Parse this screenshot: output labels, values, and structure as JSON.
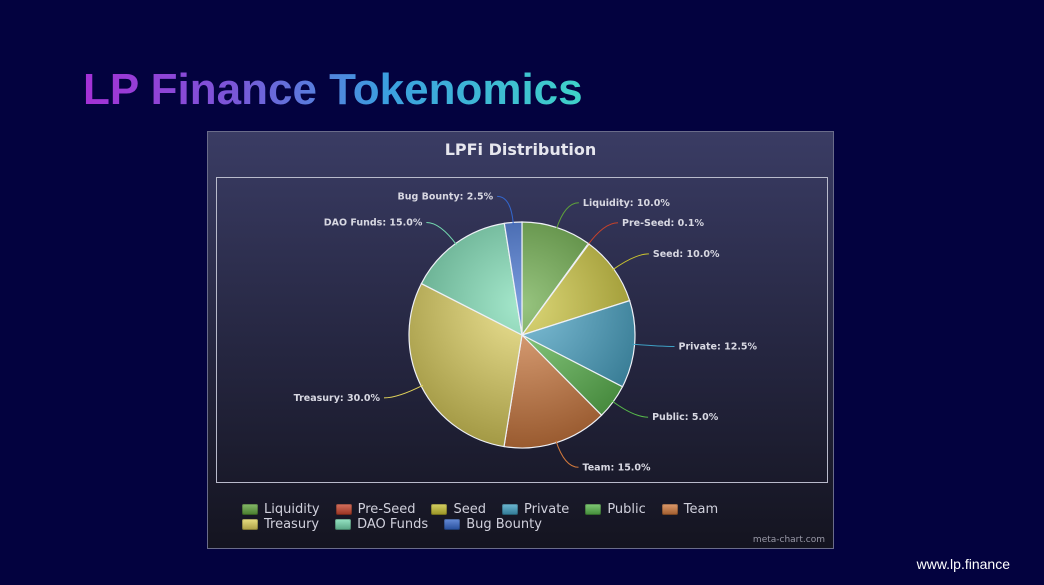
{
  "slide": {
    "title": "LP Finance Tokenomics",
    "url": "www.lp.finance",
    "background": "#03023f"
  },
  "chart_data": {
    "type": "pie",
    "title": "LPFi Distribution",
    "credit": "meta-chart.com",
    "legend_position": "bottom",
    "slices": [
      {
        "name": "Liquidity",
        "value": 10.0,
        "label": "Liquidity: 10.0%",
        "color": "#5fa43a"
      },
      {
        "name": "Pre-Seed",
        "value": 0.1,
        "label": "Pre-Seed: 0.1%",
        "color": "#c8422a"
      },
      {
        "name": "Seed",
        "value": 10.0,
        "label": "Seed: 10.0%",
        "color": "#c9c230"
      },
      {
        "name": "Private",
        "value": 12.5,
        "label": "Private: 12.5%",
        "color": "#3ea0c4"
      },
      {
        "name": "Public",
        "value": 5.0,
        "label": "Public: 5.0%",
        "color": "#57b84a"
      },
      {
        "name": "Team",
        "value": 15.0,
        "label": "Team: 15.0%",
        "color": "#d47a3c"
      },
      {
        "name": "Treasury",
        "value": 30.0,
        "label": "Treasury: 30.0%",
        "color": "#e2d35a"
      },
      {
        "name": "DAO Funds",
        "value": 15.0,
        "label": "DAO Funds: 15.0%",
        "color": "#74dbb0"
      },
      {
        "name": "Bug Bounty",
        "value": 2.5,
        "label": "Bug Bounty: 2.5%",
        "color": "#3366cc"
      }
    ]
  }
}
